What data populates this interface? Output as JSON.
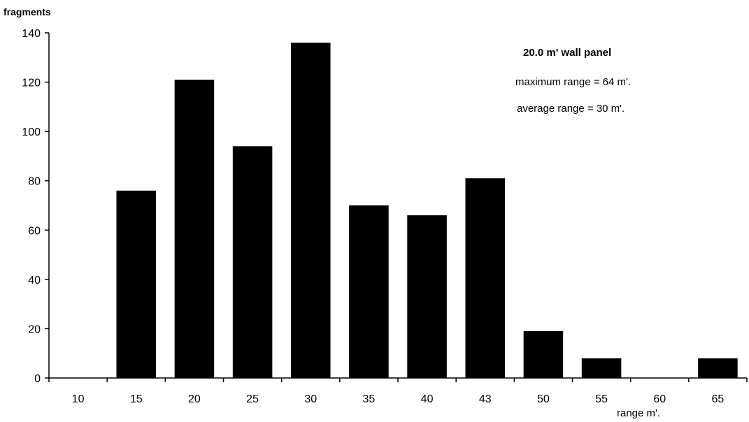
{
  "chart_data": {
    "type": "bar",
    "ylabel": "fragments",
    "xlabel": "range  m'.",
    "categories": [
      "10",
      "15",
      "20",
      "25",
      "30",
      "35",
      "40",
      "43",
      "50",
      "55",
      "60",
      "65"
    ],
    "values": [
      0,
      76,
      121,
      94,
      136,
      70,
      66,
      81,
      19,
      8,
      0,
      8
    ],
    "ylim": [
      0,
      140
    ],
    "yticks": [
      0,
      20,
      40,
      60,
      80,
      100,
      120,
      140
    ],
    "grid": false,
    "legend": "none",
    "bar_color": "#000000",
    "annotations": {
      "title": "20.0  m'  wall panel",
      "line1": "maximum range = 64  m'.",
      "line2": "average range = 30  m'."
    }
  }
}
